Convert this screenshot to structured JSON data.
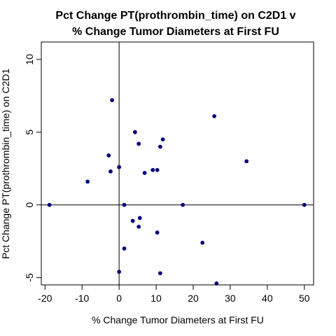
{
  "chart_data": {
    "type": "scatter",
    "title": [
      "Pct Change PT(prothrombin_time) on C2D1 v",
      "% Change Tumor Diameters at First FU"
    ],
    "xlabel": "% Change Tumor Diameters at First FU",
    "ylabel": "Pct Change PT(prothrombin_time) on C2D1",
    "xlim": [
      -21,
      52.5
    ],
    "ylim": [
      -5.5,
      11.2
    ],
    "xticks": [
      -20,
      -10,
      0,
      10,
      20,
      30,
      40,
      50
    ],
    "yticks": [
      -5,
      0,
      5,
      10
    ],
    "reference_lines": {
      "x": 0,
      "y": 0
    },
    "grid": false,
    "point_color": "#000080",
    "points": [
      {
        "x": -18.8,
        "y": 0.0
      },
      {
        "x": -8.5,
        "y": 1.6
      },
      {
        "x": -2.8,
        "y": 3.4
      },
      {
        "x": -2.3,
        "y": 2.3
      },
      {
        "x": -1.9,
        "y": 7.2
      },
      {
        "x": 0.0,
        "y": 2.6
      },
      {
        "x": 0.0,
        "y": -4.6
      },
      {
        "x": 1.4,
        "y": 0.0
      },
      {
        "x": 1.4,
        "y": -3.0
      },
      {
        "x": 3.7,
        "y": -1.1
      },
      {
        "x": 4.3,
        "y": 5.0
      },
      {
        "x": 5.3,
        "y": 4.2
      },
      {
        "x": 5.3,
        "y": -1.5
      },
      {
        "x": 5.6,
        "y": -0.9
      },
      {
        "x": 6.9,
        "y": 2.2
      },
      {
        "x": 9.1,
        "y": 2.4
      },
      {
        "x": 10.3,
        "y": 2.4
      },
      {
        "x": 10.3,
        "y": -1.9
      },
      {
        "x": 11.1,
        "y": 4.0
      },
      {
        "x": 11.1,
        "y": -4.7
      },
      {
        "x": 11.8,
        "y": 4.5
      },
      {
        "x": 17.2,
        "y": 0.0
      },
      {
        "x": 22.5,
        "y": -2.6
      },
      {
        "x": 25.7,
        "y": 6.1
      },
      {
        "x": 26.3,
        "y": -5.4
      },
      {
        "x": 34.4,
        "y": 3.0
      },
      {
        "x": 50.0,
        "y": 0.0
      }
    ]
  }
}
